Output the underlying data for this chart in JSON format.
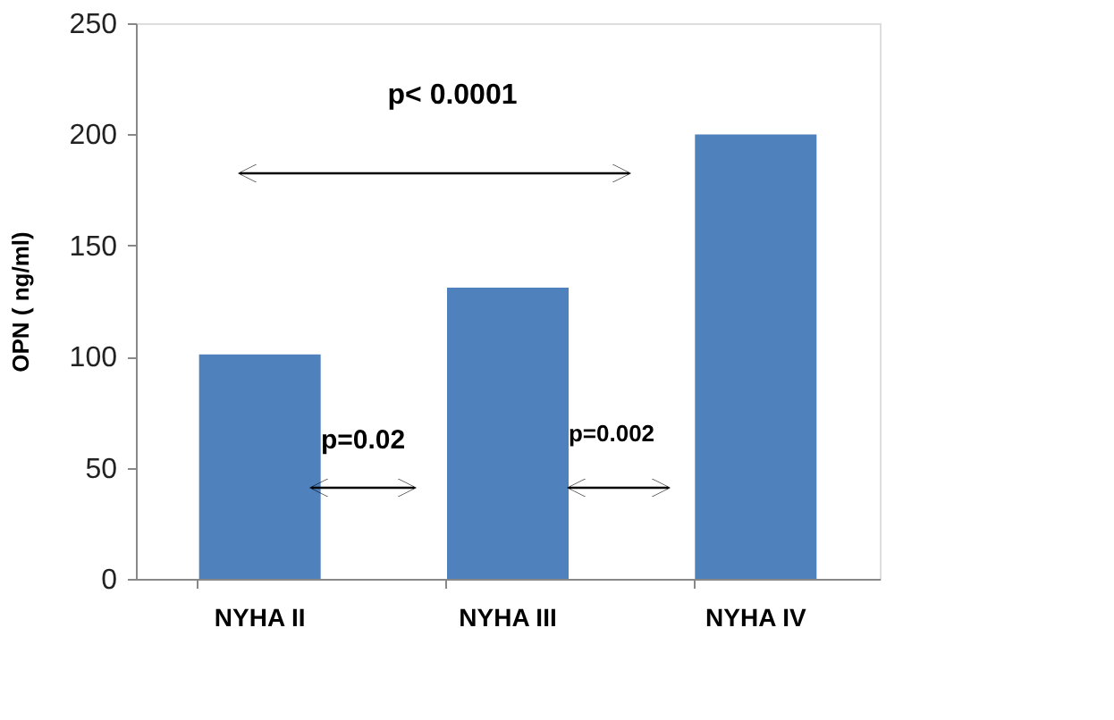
{
  "chart_data": {
    "type": "bar",
    "categories": [
      "NYHA II",
      "NYHA III",
      "NYHA IV"
    ],
    "values": [
      101,
      131,
      200
    ],
    "color": "#4f81bd",
    "ylabel": "OPN ( ng/ml)",
    "ylim": [
      0,
      250
    ],
    "yticks": [
      0,
      50,
      100,
      150,
      200,
      250
    ],
    "grid": false,
    "annotations": [
      "p< 0.0001",
      "p=0.02",
      "p=0.002"
    ]
  }
}
